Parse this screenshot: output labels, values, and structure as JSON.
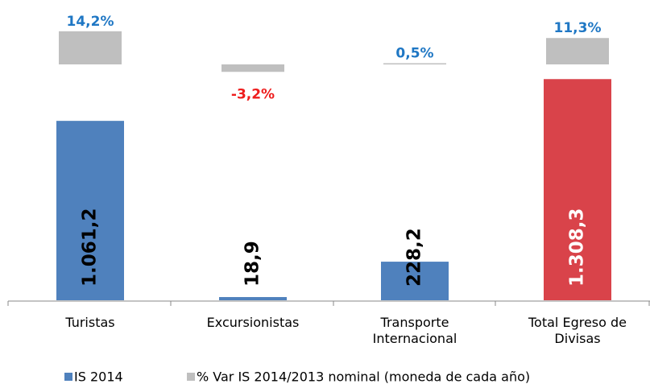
{
  "chart_data": {
    "type": "bar",
    "categories": [
      "Turistas",
      "Excursionistas",
      "Transporte Internacional",
      "Total Egreso de Divisas"
    ],
    "series": [
      {
        "name": "IS 2014",
        "color": "#4f81bd",
        "colors": [
          "#4f81bd",
          "#4f81bd",
          "#4f81bd",
          "#d9434a"
        ],
        "values": [
          1061.2,
          18.9,
          228.2,
          1308.3
        ],
        "value_labels": [
          "1.061,2",
          "18,9",
          "228,2",
          "1.308,3"
        ],
        "label_colors": [
          "#000000",
          "#000000",
          "#000000",
          "#ffffff"
        ]
      },
      {
        "name": "% Var IS 2014/2013 nominal (moneda de cada año)",
        "color": "#bfbfbf",
        "values": [
          14.2,
          -3.2,
          0.5,
          11.3
        ],
        "value_labels": [
          "14,2%",
          "-3,2%",
          "0,5%",
          "11,3%"
        ],
        "label_colors": [
          "#1f77c4",
          "#ee1c1c",
          "#1f77c4",
          "#1f77c4"
        ]
      }
    ]
  }
}
